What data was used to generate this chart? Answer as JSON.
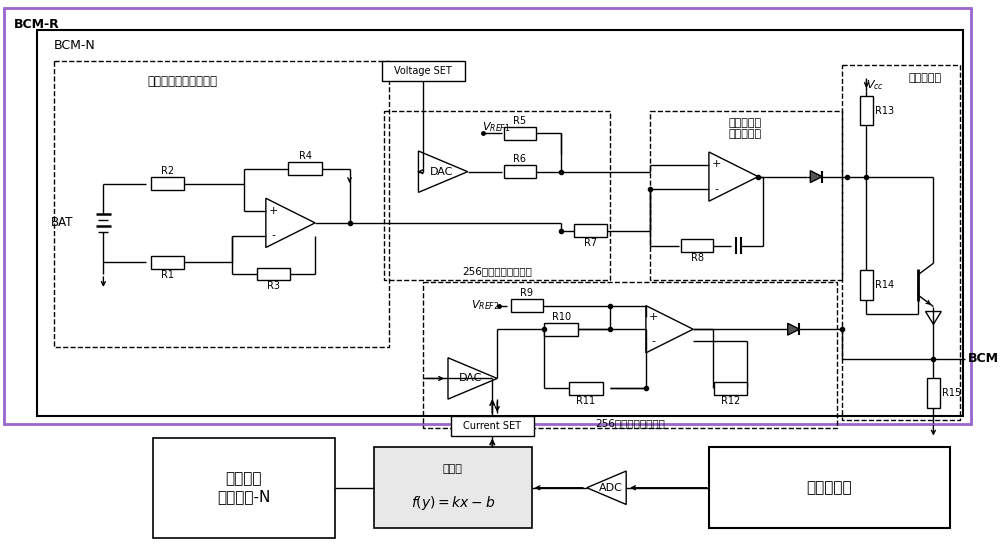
{
  "fig_width": 10.0,
  "fig_height": 5.59,
  "labels": {
    "BCM_R": "BCM-R",
    "BCM_N": "BCM-N",
    "battery_sample": "蓄电池组电压采样电路",
    "voltage_error_amp": "蓄电池电压\n误差放大器",
    "output_stage": "输出级单元",
    "voltage_gen": "256档位电压生成单元",
    "current_gen": "256档位电流生成单元",
    "smart_ctrl": "智能管理\n控制单元-N",
    "operator": "运算器",
    "formula": "$f(y) = kx - b$",
    "main_error": "主误差信号",
    "BAT": "BAT",
    "Voltage_SET": "Voltage SET",
    "Current_SET": "Current SET",
    "VREF1": "$V_{REF1}$",
    "VREF2": "$V_{REF2}$",
    "Vcc": "$V_{cc}$",
    "BCM": "BCM",
    "R1": "R1",
    "R2": "R2",
    "R3": "R3",
    "R4": "R4",
    "R5": "R5",
    "R6": "R6",
    "R7": "R7",
    "R8": "R8",
    "R9": "R9",
    "R10": "R10",
    "R11": "R11",
    "R12": "R12",
    "R13": "R13",
    "R14": "R14",
    "R15": "R15",
    "DAC": "DAC",
    "ADC": "ADC"
  },
  "colors": {
    "outer_border": "#9966cc",
    "black": "#000000",
    "white": "#ffffff",
    "bg": "#ffffff"
  }
}
